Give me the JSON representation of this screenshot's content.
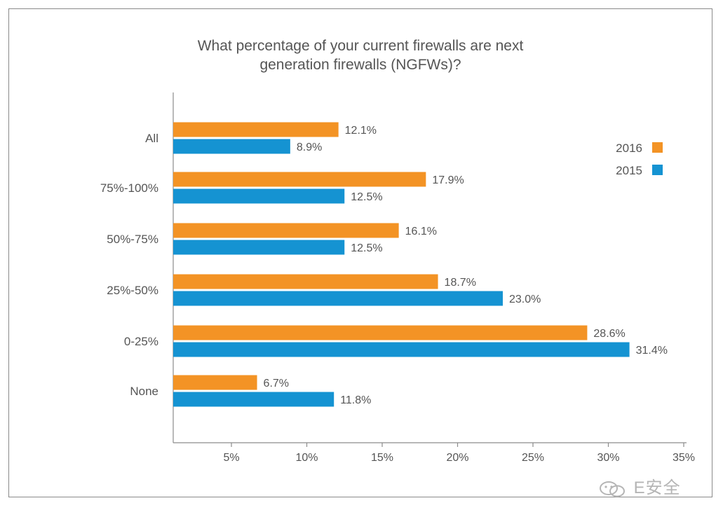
{
  "chart_data": {
    "type": "bar",
    "orientation": "horizontal",
    "title_lines": [
      "What percentage of your current firewalls are next",
      "generation firewalls (NGFWs)?"
    ],
    "categories": [
      "All",
      "75%-100%",
      "50%-75%",
      "25%-50%",
      "0-25%",
      "None"
    ],
    "series": [
      {
        "name": "2016",
        "color": "#f39325",
        "values": [
          12.1,
          17.9,
          16.1,
          18.7,
          28.6,
          6.7
        ],
        "labels": [
          "12.1%",
          "17.9%",
          "16.1%",
          "18.7%",
          "28.6%",
          "6.7%"
        ]
      },
      {
        "name": "2015",
        "color": "#1593d2",
        "values": [
          8.9,
          12.5,
          12.5,
          23.0,
          31.4,
          11.8
        ],
        "labels": [
          "8.9%",
          "12.5%",
          "12.5%",
          "23.0%",
          "31.4%",
          "11.8%"
        ]
      }
    ],
    "xlim": [
      1.5,
      35
    ],
    "xticks": [
      5,
      10,
      15,
      20,
      25,
      30,
      35
    ],
    "xtick_labels": [
      "5%",
      "10%",
      "15%",
      "20%",
      "25%",
      "30%",
      "35%"
    ],
    "legend_position": "top-right",
    "grid": false
  },
  "watermark": {
    "text": "E安全",
    "icon": "wechat-icon"
  }
}
